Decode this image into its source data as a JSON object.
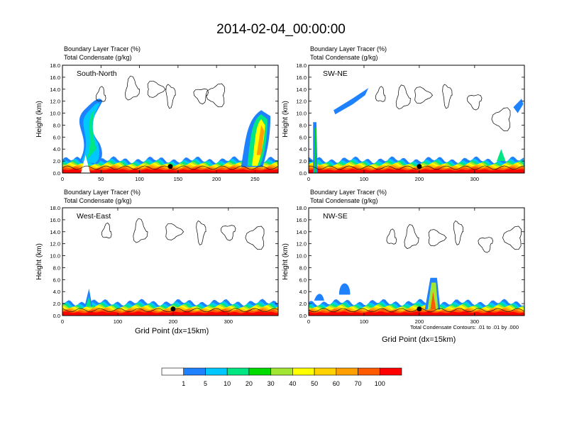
{
  "title": "2014-02-04_00:00:00",
  "panel_subtitle_line1": "Boundary Layer Tracer   (%)",
  "panel_subtitle_line2": "Total Condensate   (g/kg)",
  "ylabel": "Height (km)",
  "xlabel": "Grid Point (dx=15km)",
  "contour_note": "Total Condensate Contours: .01 to .01 by .000",
  "colors": {
    "levels": [
      "#ffffff",
      "#1e82ff",
      "#00c8ff",
      "#00e682",
      "#00dc00",
      "#a0e632",
      "#ffff00",
      "#ffd200",
      "#ffa000",
      "#ff5a00",
      "#ff0000"
    ]
  },
  "chart_data": [
    {
      "type": "heatmap",
      "label": "South-North",
      "ylim": [
        0,
        18
      ],
      "xlim": [
        0,
        280
      ],
      "xticks": [
        "0",
        "50",
        "100",
        "150",
        "200",
        "250"
      ],
      "yticks": [
        "0.0",
        "2.0",
        "4.0",
        "6.0",
        "8.0",
        "10.0",
        "12.0",
        "14.0",
        "16.0",
        "18.0"
      ],
      "location_marker": {
        "x": 140,
        "y": 1.1
      }
    },
    {
      "type": "heatmap",
      "label": "SW-NE",
      "ylim": [
        0,
        18
      ],
      "xlim": [
        0,
        390
      ],
      "xticks": [
        "0",
        "100",
        "200",
        "300"
      ],
      "yticks": [
        "0.0",
        "2.0",
        "4.0",
        "6.0",
        "8.0",
        "10.0",
        "12.0",
        "14.0",
        "16.0",
        "18.0"
      ],
      "location_marker": {
        "x": 200,
        "y": 1.1
      }
    },
    {
      "type": "heatmap",
      "label": "West-East",
      "ylim": [
        0,
        18
      ],
      "xlim": [
        0,
        390
      ],
      "xticks": [
        "0",
        "100",
        "200",
        "300"
      ],
      "yticks": [
        "0.0",
        "2.0",
        "4.0",
        "6.0",
        "8.0",
        "10.0",
        "12.0",
        "14.0",
        "16.0",
        "18.0"
      ],
      "location_marker": {
        "x": 200,
        "y": 1.1
      }
    },
    {
      "type": "heatmap",
      "label": "NW-SE",
      "ylim": [
        0,
        18
      ],
      "xlim": [
        0,
        390
      ],
      "xticks": [
        "0",
        "100",
        "200",
        "300"
      ],
      "yticks": [
        "0.0",
        "2.0",
        "4.0",
        "6.0",
        "8.0",
        "10.0",
        "12.0",
        "14.0",
        "16.0",
        "18.0"
      ],
      "location_marker": {
        "x": 200,
        "y": 1.1
      }
    }
  ],
  "colorbar": {
    "labels": [
      "1",
      "5",
      "10",
      "20",
      "30",
      "40",
      "50",
      "60",
      "70",
      "100"
    ]
  }
}
